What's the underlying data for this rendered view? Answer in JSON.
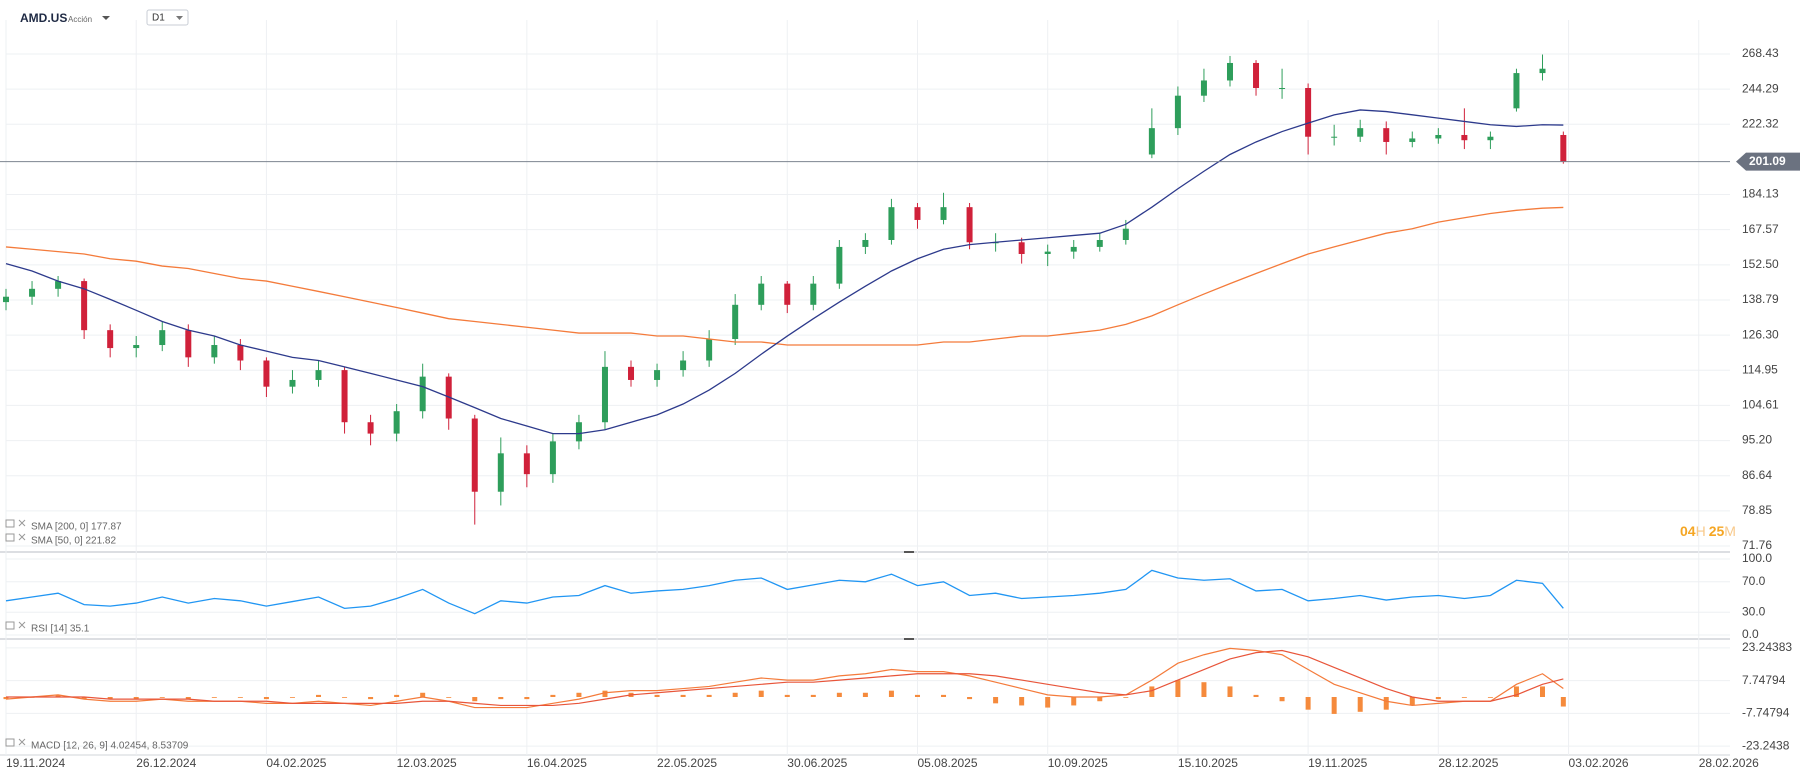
{
  "header": {
    "symbol": "AMD.US",
    "asset_type": "Acción",
    "timeframe": "D1"
  },
  "timer": {
    "hours": "04",
    "hours_unit": "H",
    "minutes": "25",
    "minutes_unit": "M"
  },
  "chart_data": [
    {
      "type": "candlestick",
      "log_scale": true,
      "grid": true,
      "up_color": "#2e9e5b",
      "down_color": "#d0213a",
      "xlim": [
        0,
        331
      ],
      "x": [
        0,
        5,
        10,
        15,
        20,
        25,
        30,
        35,
        40,
        45,
        50,
        55,
        60,
        65,
        70,
        75,
        80,
        85,
        90,
        95,
        100,
        105,
        110,
        115,
        120,
        125,
        130,
        135,
        140,
        145,
        150,
        155,
        160,
        165,
        170,
        175,
        180,
        185,
        190,
        195,
        200,
        205,
        210,
        215,
        220,
        225,
        230,
        235,
        240,
        245,
        250,
        255,
        260,
        265,
        270,
        275,
        280,
        285,
        290,
        295,
        299
      ],
      "open": [
        138,
        140,
        143,
        146,
        128,
        122,
        123,
        128,
        119,
        123,
        118,
        110,
        112,
        115,
        100,
        97,
        103,
        113,
        101,
        83,
        92,
        87,
        95,
        100,
        116,
        112,
        115,
        118,
        125,
        137,
        145,
        137,
        145,
        160,
        163,
        178,
        172,
        178,
        162,
        162,
        157,
        158,
        160,
        163,
        205,
        220,
        240,
        250,
        262,
        245,
        245,
        215,
        215,
        220,
        212,
        214,
        216,
        213,
        232,
        255,
        216
      ],
      "high": [
        143,
        146,
        148,
        147,
        130,
        126,
        131,
        130,
        126,
        125,
        119,
        115,
        118,
        116,
        102,
        105,
        117,
        114,
        102,
        96,
        94,
        97,
        102,
        121,
        118,
        117,
        121,
        128,
        141,
        148,
        146,
        148,
        163,
        166,
        182,
        180,
        185,
        180,
        166,
        164,
        161,
        163,
        166,
        172,
        232,
        246,
        258,
        267,
        264,
        258,
        248,
        222,
        225,
        224,
        218,
        220,
        232,
        218,
        258,
        268,
        218
      ],
      "low": [
        135,
        137,
        140,
        125,
        119,
        119,
        121,
        116,
        117,
        115,
        107,
        108,
        110,
        97,
        94,
        95,
        101,
        98,
        76,
        80,
        84,
        85,
        93,
        98,
        110,
        110,
        113,
        116,
        123,
        135,
        134,
        135,
        143,
        157,
        161,
        168,
        170,
        159,
        158,
        153,
        152,
        155,
        158,
        161,
        203,
        216,
        236,
        246,
        240,
        238,
        205,
        210,
        212,
        205,
        209,
        211,
        208,
        208,
        230,
        250,
        200
      ],
      "close": [
        140,
        143,
        146,
        128,
        122,
        123,
        128,
        119,
        123,
        118,
        110,
        112,
        115,
        100,
        97,
        103,
        113,
        101,
        83,
        92,
        87,
        95,
        100,
        116,
        112,
        115,
        118,
        125,
        137,
        145,
        137,
        145,
        160,
        163,
        178,
        172,
        178,
        162,
        162,
        157,
        158,
        160,
        163,
        168,
        220,
        240,
        250,
        262,
        245,
        245,
        215,
        215,
        220,
        212,
        214,
        216,
        213,
        215,
        255,
        258,
        201.09
      ],
      "ylim": [
        71.76,
        294
      ],
      "yticks": [
        71.76,
        78.85,
        86.64,
        {
          "value": 95.2,
          "label": "95.20"
        },
        104.61,
        114.95,
        {
          "value": 126.3,
          "label": "126.30"
        },
        138.79,
        {
          "value": 152.5,
          "label": "152.50"
        },
        167.57,
        184.13,
        222.32,
        244.29,
        268.43
      ],
      "last_price": 201.09,
      "overlays": [
        {
          "name": "SMA [200, 0] 177.87",
          "color": "#f47b3b",
          "values": [
            160,
            159,
            158,
            157,
            155,
            154,
            152,
            151,
            149,
            147,
            146,
            144,
            142,
            140,
            138,
            136,
            134,
            132,
            131,
            130,
            129,
            128,
            127,
            127,
            127,
            126,
            126,
            125,
            124,
            124,
            123,
            123,
            123,
            123,
            123,
            123,
            124,
            124,
            125,
            126,
            126,
            127,
            128,
            130,
            133,
            137,
            141,
            145,
            149,
            153,
            157,
            160,
            163,
            166,
            168,
            171,
            173,
            175,
            176.5,
            177.5,
            177.87
          ]
        },
        {
          "name": "SMA [50, 0] 221.82",
          "color": "#2d3a8c",
          "values": [
            153,
            150,
            146,
            143,
            139,
            135,
            131,
            128,
            126,
            123,
            121,
            119,
            118,
            116,
            114,
            112,
            110,
            107,
            104,
            101,
            99,
            97,
            97,
            98,
            100,
            102,
            105,
            109,
            114,
            120,
            126,
            132,
            138,
            144,
            150,
            155,
            159,
            161,
            162,
            163,
            164,
            165,
            166,
            170,
            178,
            187,
            196,
            205,
            212,
            218,
            223,
            228,
            231,
            230,
            228,
            226,
            224,
            222,
            221,
            222,
            221.82
          ]
        }
      ]
    },
    {
      "type": "line",
      "legend": "RSI [14] 35.1",
      "color": "#2196f3",
      "grid": true,
      "xlim": [
        0,
        331
      ],
      "x": [
        0,
        5,
        10,
        15,
        20,
        25,
        30,
        35,
        40,
        45,
        50,
        55,
        60,
        65,
        70,
        75,
        80,
        85,
        90,
        95,
        100,
        105,
        110,
        115,
        120,
        125,
        130,
        135,
        140,
        145,
        150,
        155,
        160,
        165,
        170,
        175,
        180,
        185,
        190,
        195,
        200,
        205,
        210,
        215,
        220,
        225,
        230,
        235,
        240,
        245,
        250,
        255,
        260,
        265,
        270,
        275,
        280,
        285,
        290,
        295,
        299
      ],
      "values": [
        45,
        50,
        55,
        40,
        38,
        42,
        50,
        42,
        48,
        45,
        38,
        44,
        50,
        35,
        38,
        48,
        60,
        42,
        28,
        45,
        42,
        50,
        52,
        65,
        55,
        58,
        60,
        65,
        72,
        75,
        60,
        66,
        72,
        70,
        80,
        65,
        70,
        52,
        55,
        48,
        50,
        52,
        55,
        60,
        85,
        75,
        72,
        74,
        58,
        60,
        45,
        48,
        52,
        46,
        50,
        52,
        48,
        52,
        72,
        68,
        35.1
      ],
      "ylim": [
        0,
        100
      ],
      "yticks": [
        {
          "value": 100,
          "label": "100.0"
        },
        {
          "value": 70,
          "label": "70.0"
        },
        {
          "value": 30,
          "label": "30.0"
        },
        {
          "value": 0,
          "label": "0.0"
        }
      ]
    },
    {
      "type": "macd",
      "legend": "MACD [12, 26, 9] 4.02454, 8.53709",
      "grid": true,
      "xlim": [
        0,
        331
      ],
      "x": [
        0,
        5,
        10,
        15,
        20,
        25,
        30,
        35,
        40,
        45,
        50,
        55,
        60,
        65,
        70,
        75,
        80,
        85,
        90,
        95,
        100,
        105,
        110,
        115,
        120,
        125,
        130,
        135,
        140,
        145,
        150,
        155,
        160,
        165,
        170,
        175,
        180,
        185,
        190,
        195,
        200,
        205,
        210,
        215,
        220,
        225,
        230,
        235,
        240,
        245,
        250,
        255,
        260,
        265,
        270,
        275,
        280,
        285,
        290,
        295,
        299
      ],
      "series": [
        {
          "style": "histogram",
          "color": "#f58a3c",
          "values": [
            -1,
            0,
            1,
            -1,
            -1,
            -1,
            0,
            -1,
            0,
            0,
            -1,
            0,
            1,
            0,
            -1,
            1,
            2,
            0,
            -2,
            -1,
            -1,
            1,
            2,
            3,
            2,
            1,
            1,
            1,
            2,
            3,
            1,
            1,
            2,
            2,
            3,
            1,
            1,
            -1,
            -3,
            -4,
            -5,
            -4,
            -2,
            0,
            5,
            8,
            7,
            5,
            1,
            -2,
            -6,
            -8,
            -7,
            -6,
            -4,
            -1,
            0,
            0,
            5,
            5,
            -4.51255
          ]
        },
        {
          "style": "line",
          "color": "#f47b3b",
          "values": [
            -1,
            0,
            1,
            -1,
            -2,
            -2,
            -1,
            -2,
            -2,
            -2,
            -3,
            -3,
            -2,
            -3,
            -4,
            -2,
            0,
            -2,
            -5,
            -5,
            -5,
            -3,
            -1,
            2,
            3,
            3,
            4,
            5,
            7,
            9,
            8,
            8,
            10,
            11,
            13,
            12,
            12,
            10,
            7,
            4,
            1,
            0,
            0,
            1,
            8,
            16,
            20,
            23,
            22,
            20,
            13,
            6,
            2,
            -2,
            -4,
            -3,
            -2,
            -2,
            6,
            11,
            4.02454
          ]
        },
        {
          "style": "line",
          "color": "#e8553a",
          "values": [
            0,
            0,
            0,
            0,
            -1,
            -1,
            -1,
            -1,
            -2,
            -2,
            -2,
            -3,
            -3,
            -3,
            -3,
            -3,
            -2,
            -2,
            -3,
            -4,
            -4,
            -4,
            -3,
            -1,
            1,
            2,
            3,
            4,
            5,
            6,
            7,
            7,
            8,
            9,
            10,
            11,
            11,
            11,
            10,
            8,
            6,
            4,
            2,
            1,
            3,
            8,
            13,
            18,
            21,
            22,
            19,
            14,
            9,
            4,
            0,
            -2,
            -2,
            -2,
            1,
            6,
            8.53709
          ]
        }
      ],
      "ylim": [
        -26.5,
        26.5
      ],
      "yticks": [
        23.24383,
        7.74794,
        -7.74794,
        -23.2438
      ],
      "xticks": [
        {
          "value": 0,
          "label": "19.11.2024"
        },
        {
          "value": 25,
          "label": "26.12.2024"
        },
        {
          "value": 50,
          "label": "04.02.2025"
        },
        {
          "value": 75,
          "label": "12.03.2025"
        },
        {
          "value": 100,
          "label": "16.04.2025"
        },
        {
          "value": 125,
          "label": "22.05.2025"
        },
        {
          "value": 150,
          "label": "30.06.2025"
        },
        {
          "value": 175,
          "label": "05.08.2025"
        },
        {
          "value": 200,
          "label": "10.09.2025"
        },
        {
          "value": 225,
          "label": "15.10.2025"
        },
        {
          "value": 250,
          "label": "19.11.2025"
        },
        {
          "value": 275,
          "label": "28.12.2025"
        },
        {
          "value": 300,
          "label": "03.02.2026"
        },
        {
          "value": 325,
          "label": "28.02.2026"
        }
      ]
    }
  ]
}
